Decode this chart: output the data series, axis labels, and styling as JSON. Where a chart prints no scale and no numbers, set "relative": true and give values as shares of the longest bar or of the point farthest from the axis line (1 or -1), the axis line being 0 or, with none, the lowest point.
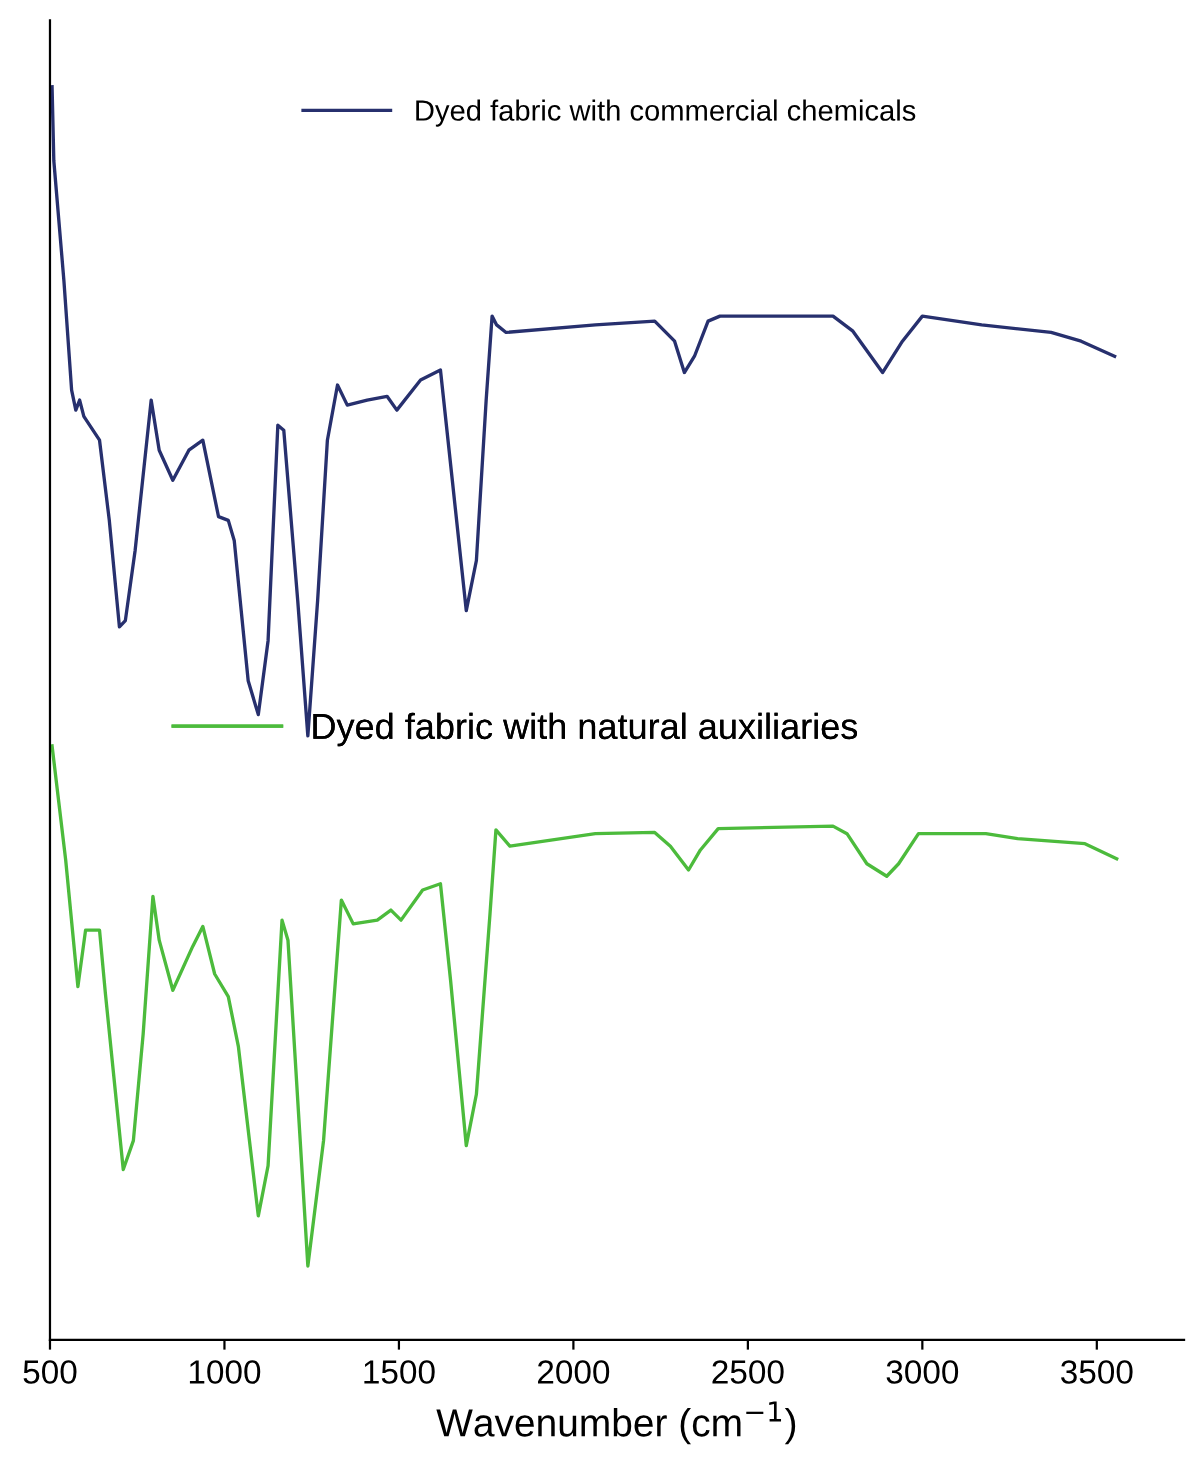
{
  "chart_data": {
    "type": "line",
    "relative": true,
    "xlabel": "Wavenumber (cm$^{−1}$)",
    "xlim": [
      500,
      3750
    ],
    "xticks": [
      500,
      1000,
      1500,
      2000,
      2500,
      3000,
      3500
    ],
    "grid": false,
    "legend": "top",
    "marker": "none",
    "line_style": "solid",
    "series": [
      {
        "name": "Dyed fabric with commercial chemicals",
        "color": "#27306e",
        "x": [
          506,
          511,
          540,
          562,
          574,
          585,
          597,
          642,
          670,
          699,
          716,
          744,
          790,
          813,
          852,
          898,
          938,
          983,
          1011,
          1028,
          1068,
          1097,
          1125,
          1153,
          1170,
          1210,
          1239,
          1267,
          1295,
          1324,
          1352,
          1409,
          1466,
          1494,
          1562,
          1619,
          1653,
          1693,
          1722,
          1750,
          1767,
          1780,
          1807,
          2063,
          2233,
          2290,
          2318,
          2347,
          2386,
          2420,
          2744,
          2801,
          2886,
          2943,
          3000,
          3170,
          3369,
          3455,
          3551
        ],
        "values": [
          1.0,
          0.941,
          0.845,
          0.758,
          0.742,
          0.75,
          0.737,
          0.718,
          0.654,
          0.569,
          0.574,
          0.63,
          0.75,
          0.71,
          0.686,
          0.71,
          0.718,
          0.657,
          0.654,
          0.638,
          0.526,
          0.499,
          0.558,
          0.73,
          0.726,
          0.59,
          0.482,
          0.59,
          0.718,
          0.762,
          0.746,
          0.75,
          0.753,
          0.742,
          0.766,
          0.774,
          0.686,
          0.582,
          0.622,
          0.75,
          0.817,
          0.81,
          0.804,
          0.81,
          0.813,
          0.797,
          0.772,
          0.785,
          0.813,
          0.817,
          0.817,
          0.805,
          0.772,
          0.797,
          0.817,
          0.81,
          0.804,
          0.797,
          0.785
        ]
      },
      {
        "name": "Dyed fabric with natural auxiliaries",
        "color": "#4cbb3c",
        "x": [
          506,
          545,
          580,
          602,
          642,
          659,
          710,
          739,
          767,
          795,
          813,
          852,
          909,
          938,
          972,
          1011,
          1040,
          1097,
          1125,
          1165,
          1182,
          1239,
          1284,
          1335,
          1369,
          1438,
          1477,
          1506,
          1568,
          1619,
          1648,
          1693,
          1722,
          1761,
          1778,
          1818,
          2063,
          2233,
          2278,
          2330,
          2364,
          2415,
          2744,
          2784,
          2841,
          2898,
          2932,
          2989,
          3182,
          3273,
          3466,
          3557
        ],
        "values": [
          0.474,
          0.383,
          0.282,
          0.327,
          0.327,
          0.276,
          0.136,
          0.159,
          0.244,
          0.354,
          0.319,
          0.279,
          0.314,
          0.33,
          0.292,
          0.274,
          0.234,
          0.099,
          0.139,
          0.335,
          0.319,
          0.059,
          0.159,
          0.351,
          0.332,
          0.335,
          0.343,
          0.335,
          0.359,
          0.364,
          0.287,
          0.155,
          0.196,
          0.34,
          0.407,
          0.394,
          0.404,
          0.405,
          0.394,
          0.375,
          0.391,
          0.408,
          0.41,
          0.404,
          0.38,
          0.37,
          0.38,
          0.404,
          0.404,
          0.4,
          0.396,
          0.384
        ]
      }
    ]
  }
}
